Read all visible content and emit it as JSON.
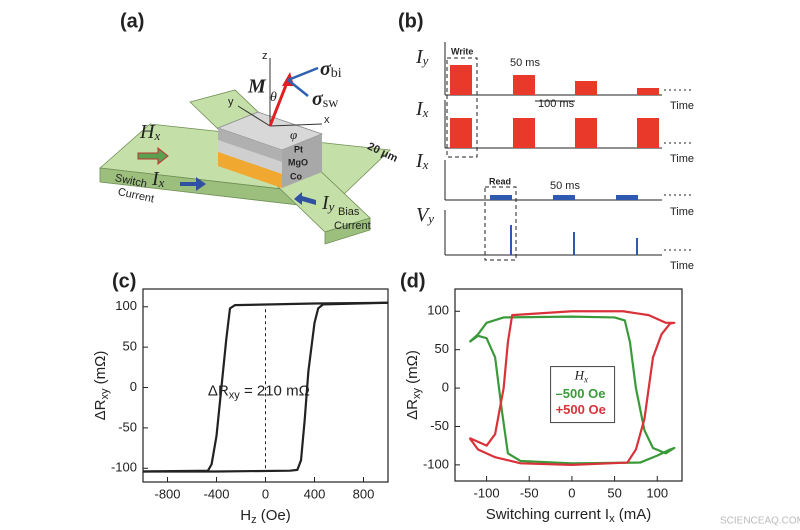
{
  "diagram": {
    "panel_a": {
      "label": "(a)",
      "z": "z",
      "y": "y",
      "x": "x",
      "m": "M",
      "theta": "θ",
      "phi": "φ",
      "sigma_bi": {
        "main": "σ",
        "sub": "bi"
      },
      "sigma_sw": {
        "main": "σ",
        "sub": "sw"
      },
      "hx": {
        "main": "H",
        "sub": "x"
      },
      "layers": [
        "Pt",
        "MgO",
        "Co"
      ],
      "width": "20 μm",
      "ix": {
        "main": "I",
        "sub": "x"
      },
      "switch": [
        "Switch",
        "Current"
      ],
      "iy": {
        "main": "I",
        "sub": "y"
      },
      "bias": [
        "Bias",
        "Current"
      ]
    },
    "panel_b": {
      "label": "(b)",
      "rows": [
        {
          "main": "I",
          "sub": "y"
        },
        {
          "main": "I",
          "sub": "x"
        },
        {
          "main": "I",
          "sub": "x"
        },
        {
          "main": "V",
          "sub": "y"
        }
      ],
      "time": "Time",
      "write": "Write",
      "read": "Read",
      "write_width": "50 ms",
      "period": "100 ms",
      "read_width": "50 ms"
    },
    "watermark": "SCIENCEAQ.COM"
  },
  "chart_data": [
    {
      "type": "line",
      "panel": "(c)",
      "xlabel": {
        "main": "H",
        "sub": "z",
        "rest": " (Oe)"
      },
      "ylabel": {
        "main": "ΔR",
        "sub": "xy",
        "rest": " (mΩ)"
      },
      "annotation": {
        "main": "ΔR",
        "sub": "xy",
        "rest": " = 210 mΩ"
      },
      "xlim": [
        -1000,
        1000
      ],
      "ylim": [
        -117,
        122
      ],
      "xticks": [
        -800,
        -400,
        0,
        400,
        800
      ],
      "yticks": [
        -100,
        -50,
        0,
        50,
        100
      ],
      "series": [
        {
          "color": "#222222",
          "x": [
            -1000,
            -400,
            200,
            260,
            290,
            320,
            350,
            400,
            430,
            470,
            1000
          ],
          "values": [
            -104,
            -104,
            -103,
            -102,
            -90,
            -40,
            20,
            80,
            98,
            103,
            105
          ]
        },
        {
          "color": "#222222",
          "x": [
            1000,
            400,
            -250,
            -290,
            -320,
            -360,
            -400,
            -440,
            -470,
            -1000
          ],
          "values": [
            105,
            104,
            102,
            98,
            60,
            0,
            -60,
            -95,
            -103,
            -104
          ]
        }
      ]
    },
    {
      "type": "line",
      "panel": "(d)",
      "xlabel": {
        "main": "Switching current I",
        "sub": "x",
        "rest": " (mA)"
      },
      "ylabel": {
        "main": "ΔR",
        "sub": "xy",
        "rest": " (mΩ)"
      },
      "legend_title": {
        "main": "H",
        "sub": "x"
      },
      "xlim": [
        -137,
        129
      ],
      "ylim": [
        -121,
        129
      ],
      "xticks": [
        -100,
        -50,
        0,
        50,
        100
      ],
      "yticks": [
        -100,
        -50,
        0,
        50,
        100
      ],
      "series": [
        {
          "name": "–500 Oe",
          "color": "#3a9a3a",
          "x": [
            -120,
            -110,
            -100,
            -80,
            0,
            50,
            62,
            68,
            75,
            85,
            95,
            110,
            120,
            115,
            100,
            80,
            0,
            -60,
            -75,
            -82,
            -90,
            -100,
            -110,
            -120
          ],
          "values": [
            60,
            70,
            85,
            92,
            93,
            92,
            88,
            60,
            0,
            -55,
            -78,
            -85,
            -78,
            -80,
            -88,
            -97,
            -98,
            -95,
            -85,
            -30,
            40,
            65,
            68,
            60
          ]
        },
        {
          "name": "+500 Oe",
          "color": "#d9323a",
          "x": [
            -120,
            -100,
            -90,
            -80,
            -75,
            -70,
            0,
            60,
            90,
            110,
            120,
            115,
            105,
            95,
            85,
            75,
            65,
            0,
            -60,
            -90,
            -110,
            -120
          ],
          "values": [
            -65,
            -75,
            -60,
            0,
            60,
            95,
            100,
            100,
            95,
            85,
            85,
            84,
            70,
            40,
            -40,
            -80,
            -97,
            -100,
            -98,
            -90,
            -80,
            -65
          ]
        }
      ]
    }
  ]
}
